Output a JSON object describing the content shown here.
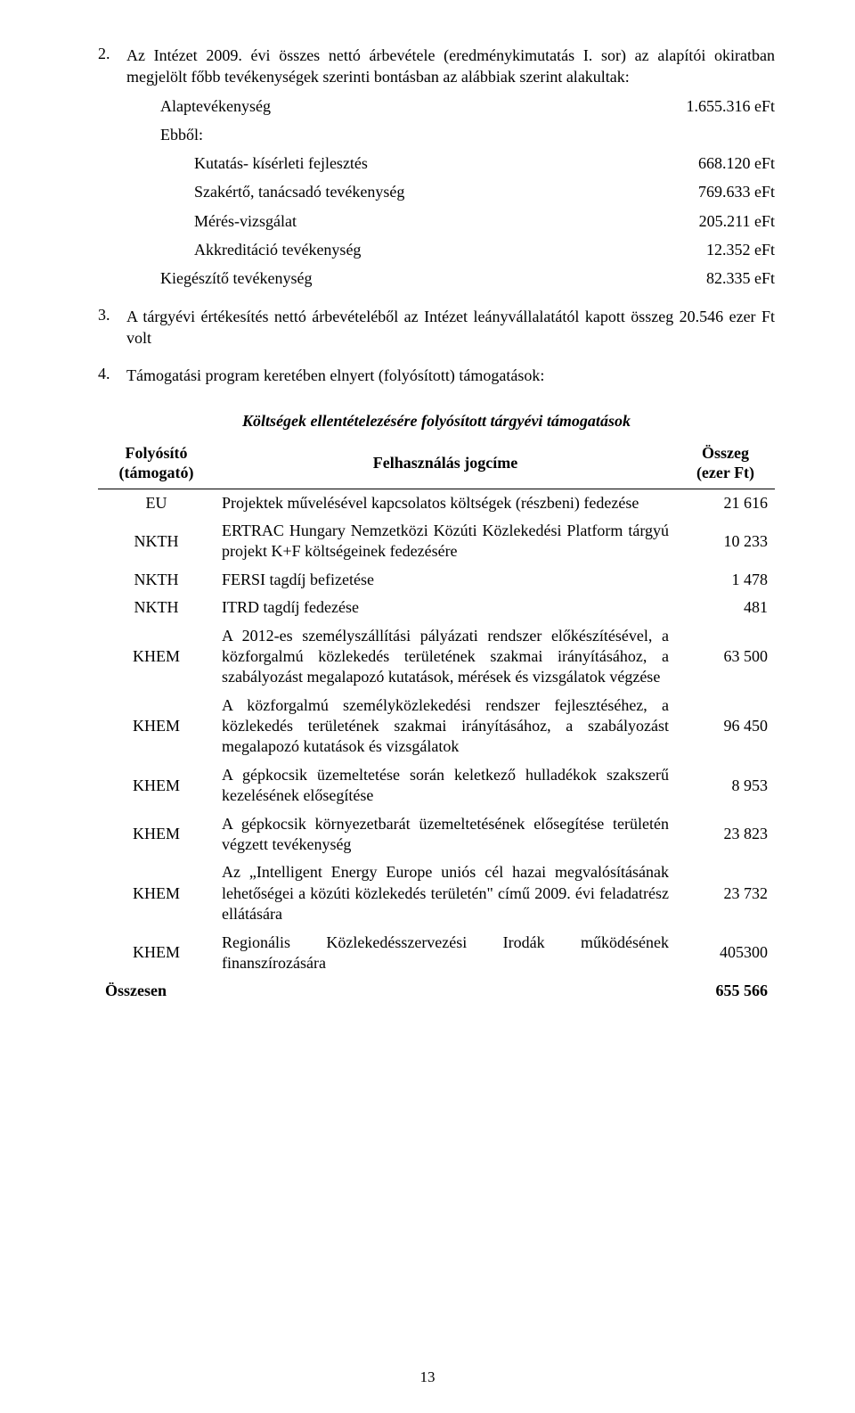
{
  "section2": {
    "number": "2.",
    "intro": "Az Intézet 2009. évi összes nettó árbevétele (eredménykimutatás I. sor) az alapítói okiratban megjelölt főbb tevékenységek szerinti bontásban az alábbiak szerint alakultak:",
    "rows": [
      {
        "label": "Alaptevékenység",
        "value": "1.655.316 eFt",
        "indent": 1
      },
      {
        "label": "Ebből:",
        "value": "",
        "indent": 1
      },
      {
        "label": "Kutatás- kísérleti fejlesztés",
        "value": "668.120 eFt",
        "indent": 2
      },
      {
        "label": "Szakértő, tanácsadó tevékenység",
        "value": "769.633 eFt",
        "indent": 2
      },
      {
        "label": "Mérés-vizsgálat",
        "value": "205.211 eFt",
        "indent": 2
      },
      {
        "label": "Akkreditáció tevékenység",
        "value": "12.352 eFt",
        "indent": 2
      },
      {
        "label": "Kiegészítő tevékenység",
        "value": "82.335 eFt",
        "indent": 1
      }
    ]
  },
  "section3": {
    "number": "3.",
    "text": "A tárgyévi értékesítés nettó árbevételéből az Intézet leányvállalatától kapott összeg 20.546 ezer Ft volt"
  },
  "section4": {
    "number": "4.",
    "text": "Támogatási program keretében elnyert (folyósított) támogatások:"
  },
  "subsidy": {
    "caption": "Költségek ellentételezésére folyósított tárgyévi támogatások",
    "header": {
      "funder": "Folyósító (támogató)",
      "title": "Felhasználás jogcíme",
      "amount": "Összeg (ezer Ft)"
    },
    "rows": [
      {
        "funder": "EU",
        "title": "Projektek művelésével kapcsolatos költségek (részbeni) fedezése",
        "amount": "21 616"
      },
      {
        "funder": "NKTH",
        "title": "ERTRAC Hungary Nemzetközi Közúti Közlekedési Platform tárgyú projekt K+F költségeinek fedezésére",
        "amount": "10 233"
      },
      {
        "funder": "NKTH",
        "title": "FERSI tagdíj befizetése",
        "amount": "1 478"
      },
      {
        "funder": "NKTH",
        "title": "ITRD tagdíj fedezése",
        "amount": "481"
      },
      {
        "funder": "KHEM",
        "title": "A 2012-es személyszállítási pályázati rendszer előkészítésével, a közforgalmú közlekedés területének szakmai irányításához, a szabályozást megalapozó kutatások, mérések és vizsgálatok végzése",
        "amount": "63 500"
      },
      {
        "funder": "KHEM",
        "title": "A közforgalmú személyközlekedési rendszer fejlesztéséhez, a közlekedés területének szakmai irányításához, a szabályozást megalapozó kutatások és vizsgálatok",
        "amount": "96 450"
      },
      {
        "funder": "KHEM",
        "title": "A gépkocsik üzemeltetése során keletkező hulladékok szakszerű kezelésének elősegítése",
        "amount": "8 953"
      },
      {
        "funder": "KHEM",
        "title": "A gépkocsik környezetbarát üzemeltetésének elősegítése területén végzett tevékenység",
        "amount": "23 823"
      },
      {
        "funder": "KHEM",
        "title": "Az „Intelligent Energy Europe uniós cél hazai megvalósításának lehetőségei a közúti közlekedés területén\" című 2009. évi feladatrész ellátására",
        "amount": "23 732"
      },
      {
        "funder": "KHEM",
        "title": "Regionális Közlekedésszervezési Irodák működésének finanszírozására",
        "amount": "405300"
      }
    ],
    "total": {
      "funder": "Összesen",
      "title": "",
      "amount": "655 566"
    }
  },
  "pageNumber": "13"
}
